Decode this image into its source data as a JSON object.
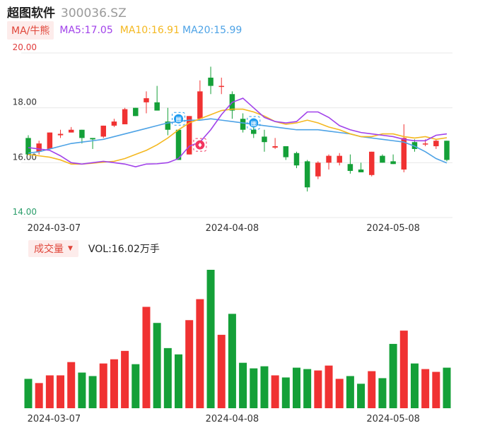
{
  "header": {
    "name": "超图软件",
    "code": "300036.SZ"
  },
  "ma_legend": {
    "button": "MA/牛熊",
    "ma5": "MA5:17.05",
    "ma10": "MA10:16.91",
    "ma20": "MA20:15.99"
  },
  "volume_legend": {
    "button": "成交量",
    "caret": "▼",
    "text": "VOL:16.02万手"
  },
  "colors": {
    "up": "#f03232",
    "down": "#14a038",
    "ma5": "#a142ea",
    "ma10": "#f4b820",
    "ma20": "#4ea3e6",
    "grid": "#e8e8e8",
    "ytick_top": "#e03c3c",
    "ytick_bottom": "#2a9d6a",
    "ytick_mid": "#333333"
  },
  "chart_data": {
    "type": "candlestick",
    "ylim": [
      14,
      20
    ],
    "yticks": [
      "20.00",
      "18.00",
      "16.00",
      "14.00"
    ],
    "xticks": [
      {
        "label": "2024-03-07",
        "index": 2
      },
      {
        "label": "2024-04-08",
        "index": 19
      },
      {
        "label": "2024-05-08",
        "index": 34
      }
    ],
    "candles": [
      {
        "o": 16.9,
        "h": 17.0,
        "l": 16.3,
        "c": 16.3
      },
      {
        "o": 16.4,
        "h": 16.8,
        "l": 16.3,
        "c": 16.7
      },
      {
        "o": 16.5,
        "h": 17.1,
        "l": 16.5,
        "c": 17.1
      },
      {
        "o": 17.0,
        "h": 17.2,
        "l": 16.9,
        "c": 17.05
      },
      {
        "o": 17.1,
        "h": 17.3,
        "l": 17.1,
        "c": 17.2
      },
      {
        "o": 17.2,
        "h": 17.2,
        "l": 16.7,
        "c": 16.9
      },
      {
        "o": 16.9,
        "h": 16.9,
        "l": 16.5,
        "c": 16.85
      },
      {
        "o": 16.95,
        "h": 17.35,
        "l": 16.9,
        "c": 17.35
      },
      {
        "o": 17.35,
        "h": 17.6,
        "l": 17.3,
        "c": 17.5
      },
      {
        "o": 17.4,
        "h": 18.0,
        "l": 17.4,
        "c": 17.95
      },
      {
        "o": 18.0,
        "h": 18.0,
        "l": 17.7,
        "c": 17.7
      },
      {
        "o": 18.2,
        "h": 18.6,
        "l": 17.8,
        "c": 18.35
      },
      {
        "o": 18.2,
        "h": 18.8,
        "l": 17.9,
        "c": 17.9
      },
      {
        "o": 17.5,
        "h": 18.0,
        "l": 17.0,
        "c": 17.2
      },
      {
        "o": 17.2,
        "h": 17.2,
        "l": 16.1,
        "c": 16.1
      },
      {
        "o": 16.3,
        "h": 17.7,
        "l": 16.3,
        "c": 17.7
      },
      {
        "o": 17.6,
        "h": 19.0,
        "l": 17.6,
        "c": 18.6
      },
      {
        "o": 19.1,
        "h": 19.5,
        "l": 18.5,
        "c": 18.8
      },
      {
        "o": 18.8,
        "h": 19.1,
        "l": 18.5,
        "c": 18.8
      },
      {
        "o": 18.5,
        "h": 18.6,
        "l": 17.6,
        "c": 17.9
      },
      {
        "o": 17.6,
        "h": 17.8,
        "l": 17.1,
        "c": 17.2
      },
      {
        "o": 17.2,
        "h": 17.3,
        "l": 16.9,
        "c": 17.05
      },
      {
        "o": 16.95,
        "h": 17.2,
        "l": 16.4,
        "c": 16.75
      },
      {
        "o": 16.55,
        "h": 16.9,
        "l": 16.5,
        "c": 16.6
      },
      {
        "o": 16.6,
        "h": 16.6,
        "l": 16.1,
        "c": 16.2
      },
      {
        "o": 16.35,
        "h": 16.4,
        "l": 15.8,
        "c": 15.9
      },
      {
        "o": 16.05,
        "h": 16.1,
        "l": 14.95,
        "c": 15.1
      },
      {
        "o": 15.5,
        "h": 16.05,
        "l": 15.4,
        "c": 16.0
      },
      {
        "o": 16.0,
        "h": 16.3,
        "l": 15.75,
        "c": 16.25
      },
      {
        "o": 16.0,
        "h": 16.35,
        "l": 15.9,
        "c": 16.25
      },
      {
        "o": 15.95,
        "h": 16.3,
        "l": 15.6,
        "c": 15.7
      },
      {
        "o": 15.75,
        "h": 16.0,
        "l": 15.65,
        "c": 15.65
      },
      {
        "o": 15.55,
        "h": 16.4,
        "l": 15.5,
        "c": 16.4
      },
      {
        "o": 16.25,
        "h": 16.3,
        "l": 16.0,
        "c": 16.0
      },
      {
        "o": 16.05,
        "h": 16.3,
        "l": 15.95,
        "c": 15.95
      },
      {
        "o": 15.75,
        "h": 17.4,
        "l": 15.65,
        "c": 16.9
      },
      {
        "o": 16.75,
        "h": 16.85,
        "l": 16.4,
        "c": 16.5
      },
      {
        "o": 16.7,
        "h": 16.85,
        "l": 16.6,
        "c": 16.7
      },
      {
        "o": 16.6,
        "h": 16.85,
        "l": 16.5,
        "c": 16.8
      },
      {
        "o": 16.8,
        "h": 16.8,
        "l": 16.05,
        "c": 16.1
      }
    ],
    "ma5": [
      16.55,
      16.5,
      16.45,
      16.25,
      16.0,
      15.95,
      16.0,
      16.05,
      16.0,
      15.95,
      15.85,
      15.95,
      15.96,
      16.0,
      16.15,
      16.6,
      16.75,
      17.2,
      17.75,
      18.2,
      18.35,
      18.0,
      17.65,
      17.5,
      17.45,
      17.5,
      17.85,
      17.85,
      17.65,
      17.35,
      17.2,
      17.1,
      17.05,
      17.0,
      16.95,
      16.85,
      16.8,
      16.8,
      17.0,
      17.05
    ],
    "ma10": [
      16.3,
      16.25,
      16.2,
      16.1,
      15.95,
      15.95,
      15.98,
      16.02,
      16.05,
      16.15,
      16.3,
      16.45,
      16.65,
      16.9,
      17.2,
      17.45,
      17.6,
      17.75,
      17.9,
      17.95,
      17.95,
      17.85,
      17.7,
      17.5,
      17.4,
      17.45,
      17.55,
      17.45,
      17.3,
      17.2,
      17.05,
      16.95,
      16.95,
      17.05,
      17.05,
      16.95,
      16.9,
      16.95,
      16.85,
      16.91
    ],
    "ma20": [
      16.35,
      16.4,
      16.5,
      16.6,
      16.7,
      16.75,
      16.8,
      16.85,
      16.95,
      17.05,
      17.15,
      17.25,
      17.35,
      17.45,
      17.5,
      17.55,
      17.55,
      17.6,
      17.55,
      17.5,
      17.45,
      17.4,
      17.35,
      17.3,
      17.25,
      17.2,
      17.2,
      17.2,
      17.15,
      17.1,
      17.05,
      16.95,
      16.9,
      16.85,
      16.8,
      16.75,
      16.6,
      16.4,
      16.15,
      15.99
    ],
    "volume": [
      0.42,
      0.36,
      0.47,
      0.47,
      0.66,
      0.51,
      0.46,
      0.64,
      0.7,
      0.82,
      0.63,
      1.45,
      1.22,
      0.86,
      0.77,
      1.26,
      1.56,
      1.98,
      1.05,
      1.35,
      0.65,
      0.57,
      0.6,
      0.47,
      0.44,
      0.58,
      0.56,
      0.54,
      0.61,
      0.42,
      0.46,
      0.35,
      0.53,
      0.43,
      0.92,
      1.11,
      0.64,
      0.56,
      0.52,
      0.58
    ]
  }
}
